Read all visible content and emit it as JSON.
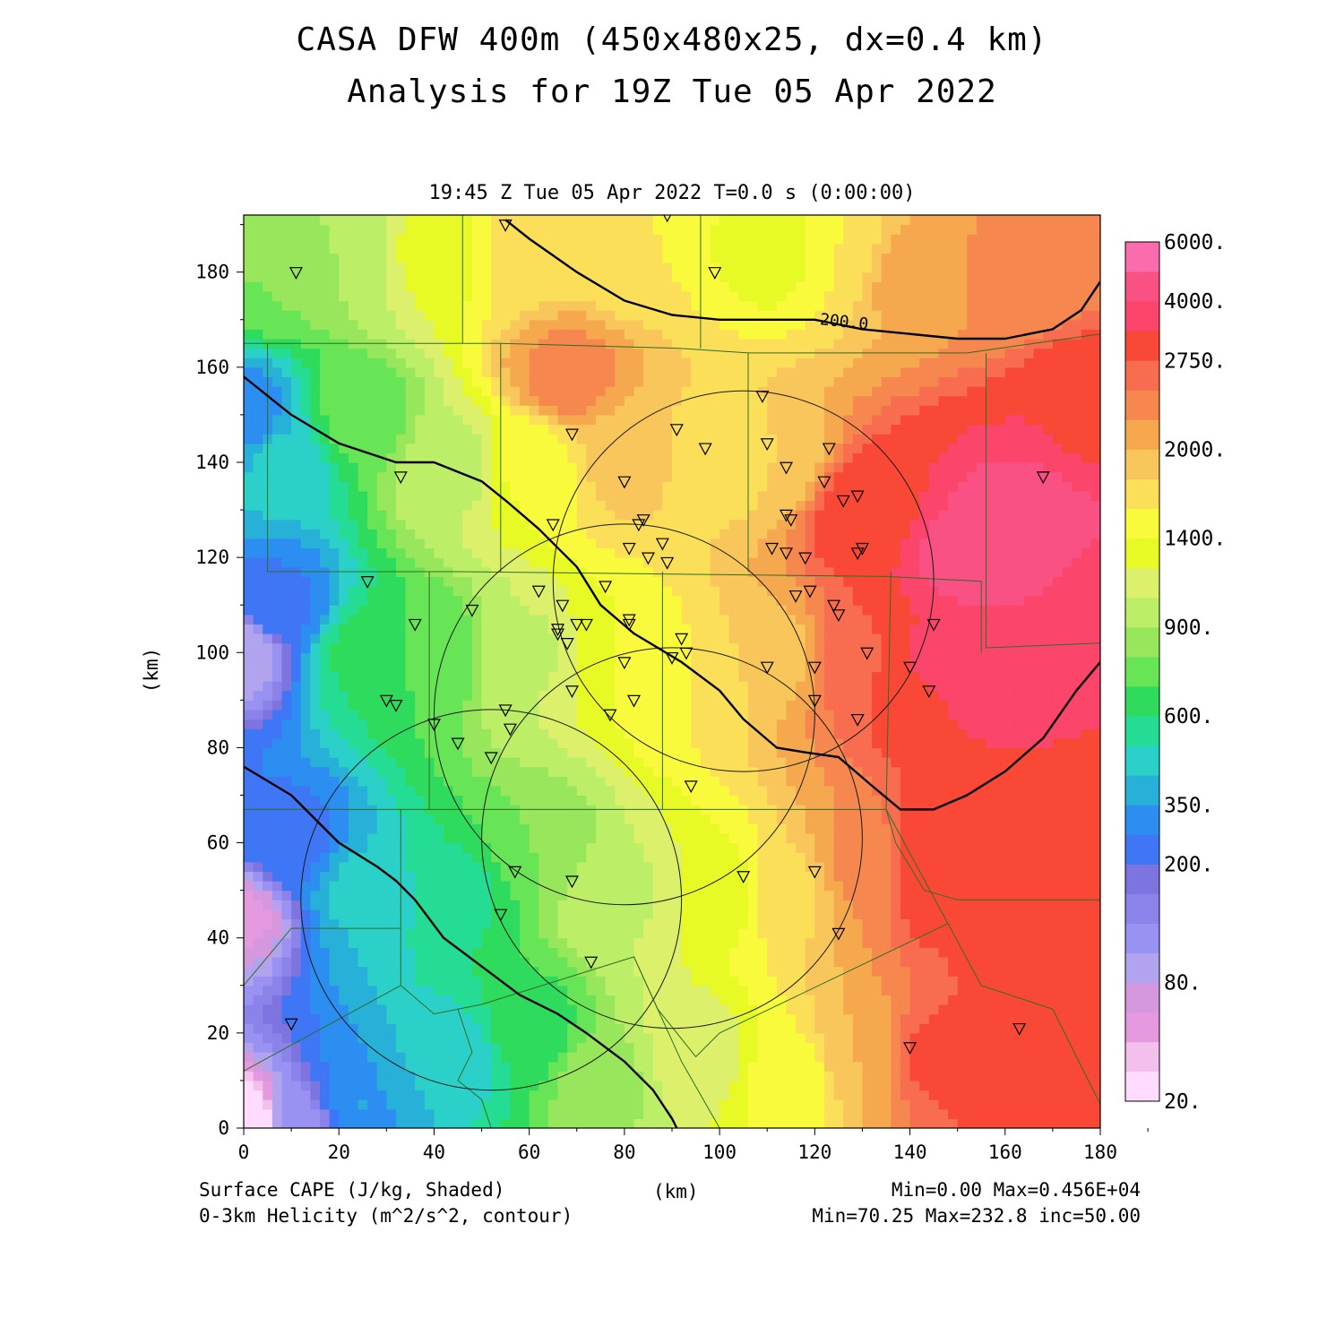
{
  "titles": {
    "line1": "CASA DFW 400m (450x480x25, dx=0.4 km)",
    "line2": "Analysis for 19Z Tue 05 Apr 2022",
    "subtitle": "19:45 Z Tue 05 Apr 2022   T=0.0 s (0:00:00)"
  },
  "footer": {
    "var1": "Surface CAPE (J/kg, Shaded)",
    "var2": "0-3km Helicity (m^2/s^2, contour)",
    "xunit": "(km)",
    "stats1": "Min=0.00 Max=0.456E+04",
    "stats2": "Min=70.25 Max=232.8 inc=50.00"
  },
  "chart_data": {
    "type": "heatmap",
    "xlabel": "(km)",
    "ylabel": "(km)",
    "xlim": [
      0,
      180
    ],
    "ylim": [
      0,
      192
    ],
    "x_ticks": [
      0,
      20,
      40,
      60,
      80,
      100,
      120,
      140,
      160,
      180
    ],
    "y_ticks": [
      0,
      20,
      40,
      60,
      80,
      100,
      120,
      140,
      160,
      180
    ],
    "colorbar": {
      "labels": [
        {
          "value": 20,
          "text": "20."
        },
        {
          "value": 80,
          "text": "80."
        },
        {
          "value": 200,
          "text": "200."
        },
        {
          "value": 350,
          "text": "350."
        },
        {
          "value": 600,
          "text": "600."
        },
        {
          "value": 900,
          "text": "900."
        },
        {
          "value": 1400,
          "text": "1400."
        },
        {
          "value": 2000,
          "text": "2000."
        },
        {
          "value": 2750,
          "text": "2750."
        },
        {
          "value": 4000,
          "text": "4000."
        },
        {
          "value": 6000,
          "text": "6000."
        }
      ],
      "colors": [
        "#ffdcff",
        "#f3c0ee",
        "#e59ae0",
        "#d597de",
        "#b2a3ee",
        "#9a92f3",
        "#8b83ea",
        "#7d74e0",
        "#3e76f5",
        "#2b8ef0",
        "#27b1d8",
        "#2bd1c8",
        "#24dc93",
        "#2edb5c",
        "#67e556",
        "#98e65c",
        "#bdee68",
        "#dcf06c",
        "#e7fa26",
        "#fafa3d",
        "#fcdf59",
        "#f8c65a",
        "#f6a84e",
        "#f5874f",
        "#f86d4f",
        "#f94936",
        "#fb456a",
        "#fa5185",
        "#fb6cae"
      ]
    },
    "cape_points": [
      [
        0,
        0,
        0
      ],
      [
        0,
        45,
        60
      ],
      [
        0,
        100,
        80
      ],
      [
        0,
        150,
        300
      ],
      [
        5,
        180,
        800
      ],
      [
        12,
        0,
        120
      ],
      [
        10,
        60,
        250
      ],
      [
        8,
        110,
        260
      ],
      [
        8,
        140,
        450
      ],
      [
        25,
        5,
        350
      ],
      [
        25,
        50,
        450
      ],
      [
        25,
        100,
        620
      ],
      [
        25,
        150,
        750
      ],
      [
        22,
        185,
        900
      ],
      [
        45,
        15,
        480
      ],
      [
        45,
        50,
        580
      ],
      [
        40,
        100,
        720
      ],
      [
        45,
        140,
        1000
      ],
      [
        40,
        185,
        1300
      ],
      [
        60,
        20,
        650
      ],
      [
        62,
        60,
        800
      ],
      [
        60,
        100,
        1050
      ],
      [
        60,
        140,
        1450
      ],
      [
        60,
        185,
        1700
      ],
      [
        75,
        10,
        850
      ],
      [
        80,
        50,
        1050
      ],
      [
        78,
        100,
        1400
      ],
      [
        80,
        140,
        1850
      ],
      [
        68,
        158,
        2350
      ],
      [
        80,
        185,
        1600
      ],
      [
        95,
        15,
        1150
      ],
      [
        100,
        50,
        1300
      ],
      [
        95,
        95,
        1600
      ],
      [
        100,
        140,
        1700
      ],
      [
        112,
        185,
        1300
      ],
      [
        115,
        10,
        1450
      ],
      [
        115,
        50,
        1750
      ],
      [
        112,
        100,
        1900
      ],
      [
        112,
        140,
        1800
      ],
      [
        125,
        185,
        1600
      ],
      [
        130,
        15,
        2000
      ],
      [
        130,
        55,
        2300
      ],
      [
        128,
        100,
        2700
      ],
      [
        130,
        130,
        3000
      ],
      [
        140,
        180,
        2100
      ],
      [
        145,
        15,
        2800
      ],
      [
        145,
        55,
        3100
      ],
      [
        145,
        100,
        3400
      ],
      [
        152,
        120,
        4300
      ],
      [
        160,
        180,
        2300
      ],
      [
        165,
        15,
        3100
      ],
      [
        165,
        55,
        3200
      ],
      [
        160,
        95,
        3500
      ],
      [
        165,
        125,
        4500
      ],
      [
        178,
        185,
        2400
      ],
      [
        180,
        0,
        3200
      ],
      [
        180,
        60,
        3200
      ],
      [
        180,
        110,
        3600
      ],
      [
        180,
        150,
        3300
      ]
    ],
    "helicity_contours": [
      [
        [
          0,
          158
        ],
        [
          10,
          150
        ],
        [
          20,
          144
        ],
        [
          32,
          140
        ],
        [
          40,
          140
        ],
        [
          50,
          136
        ],
        [
          55,
          132
        ],
        [
          62,
          126
        ],
        [
          70,
          118
        ],
        [
          75,
          110
        ],
        [
          82,
          104
        ],
        [
          92,
          98
        ],
        [
          100,
          92
        ],
        [
          105,
          86
        ],
        [
          112,
          80
        ],
        [
          118,
          79
        ],
        [
          125,
          78
        ],
        [
          132,
          72
        ],
        [
          138,
          67
        ],
        [
          145,
          67
        ],
        [
          152,
          70
        ],
        [
          160,
          75
        ],
        [
          168,
          82
        ],
        [
          175,
          92
        ],
        [
          180,
          98
        ]
      ],
      [
        [
          0,
          76
        ],
        [
          10,
          70
        ],
        [
          20,
          60
        ],
        [
          28,
          55
        ],
        [
          32,
          52
        ],
        [
          36,
          48
        ],
        [
          42,
          40
        ],
        [
          50,
          34
        ],
        [
          58,
          28
        ],
        [
          66,
          24
        ],
        [
          72,
          20
        ],
        [
          80,
          14
        ],
        [
          86,
          8
        ],
        [
          90,
          2
        ],
        [
          91,
          0
        ]
      ],
      [
        [
          55,
          191
        ],
        [
          60,
          187
        ],
        [
          70,
          180
        ],
        [
          80,
          174
        ],
        [
          90,
          171
        ],
        [
          100,
          170
        ],
        [
          110,
          170
        ],
        [
          120,
          170
        ],
        [
          130,
          168
        ],
        [
          140,
          167
        ],
        [
          150,
          166
        ],
        [
          160,
          166
        ],
        [
          170,
          168
        ],
        [
          176,
          172
        ],
        [
          180,
          178
        ]
      ]
    ],
    "helicity_label": {
      "text": "200.0",
      "at": [
        121,
        169
      ]
    },
    "radar_rings": [
      {
        "cx": 105,
        "cy": 115,
        "r": 40
      },
      {
        "cx": 80,
        "cy": 87,
        "r": 40
      },
      {
        "cx": 90,
        "cy": 61,
        "r": 40
      },
      {
        "cx": 52,
        "cy": 48,
        "r": 40
      }
    ],
    "stations": [
      [
        11,
        180
      ],
      [
        89,
        192
      ],
      [
        55,
        190
      ],
      [
        99,
        180
      ],
      [
        33,
        137
      ],
      [
        69,
        146
      ],
      [
        109,
        154
      ],
      [
        91,
        147
      ],
      [
        97,
        143
      ],
      [
        110,
        144
      ],
      [
        114,
        139
      ],
      [
        123,
        143
      ],
      [
        122,
        136
      ],
      [
        80,
        136
      ],
      [
        126,
        132
      ],
      [
        129,
        133
      ],
      [
        65,
        127
      ],
      [
        84,
        128
      ],
      [
        83,
        127
      ],
      [
        114,
        129
      ],
      [
        115,
        128
      ],
      [
        81,
        122
      ],
      [
        88,
        123
      ],
      [
        85,
        120
      ],
      [
        89,
        119
      ],
      [
        111,
        122
      ],
      [
        114,
        121
      ],
      [
        118,
        120
      ],
      [
        130,
        122
      ],
      [
        129,
        121
      ],
      [
        26,
        115
      ],
      [
        62,
        113
      ],
      [
        76,
        114
      ],
      [
        116,
        112
      ],
      [
        119,
        113
      ],
      [
        67,
        110
      ],
      [
        124,
        110
      ],
      [
        125,
        108
      ],
      [
        48,
        109
      ],
      [
        36,
        106
      ],
      [
        70,
        106
      ],
      [
        72,
        106
      ],
      [
        81,
        107
      ],
      [
        81,
        106
      ],
      [
        66,
        105
      ],
      [
        66,
        104
      ],
      [
        68,
        102
      ],
      [
        92,
        103
      ],
      [
        93,
        100
      ],
      [
        90,
        99
      ],
      [
        80,
        98
      ],
      [
        110,
        97
      ],
      [
        120,
        97
      ],
      [
        131,
        100
      ],
      [
        140,
        97
      ],
      [
        145,
        106
      ],
      [
        69,
        92
      ],
      [
        82,
        90
      ],
      [
        30,
        90
      ],
      [
        32,
        89
      ],
      [
        120,
        90
      ],
      [
        144,
        92
      ],
      [
        55,
        88
      ],
      [
        77,
        87
      ],
      [
        40,
        85
      ],
      [
        45,
        81
      ],
      [
        56,
        84
      ],
      [
        52,
        78
      ],
      [
        129,
        86
      ],
      [
        94,
        72
      ],
      [
        57,
        54
      ],
      [
        69,
        52
      ],
      [
        105,
        53
      ],
      [
        120,
        54
      ],
      [
        54,
        45
      ],
      [
        125,
        41
      ],
      [
        73,
        35
      ],
      [
        10,
        22
      ],
      [
        140,
        17
      ],
      [
        163,
        21
      ],
      [
        168,
        137
      ]
    ]
  }
}
